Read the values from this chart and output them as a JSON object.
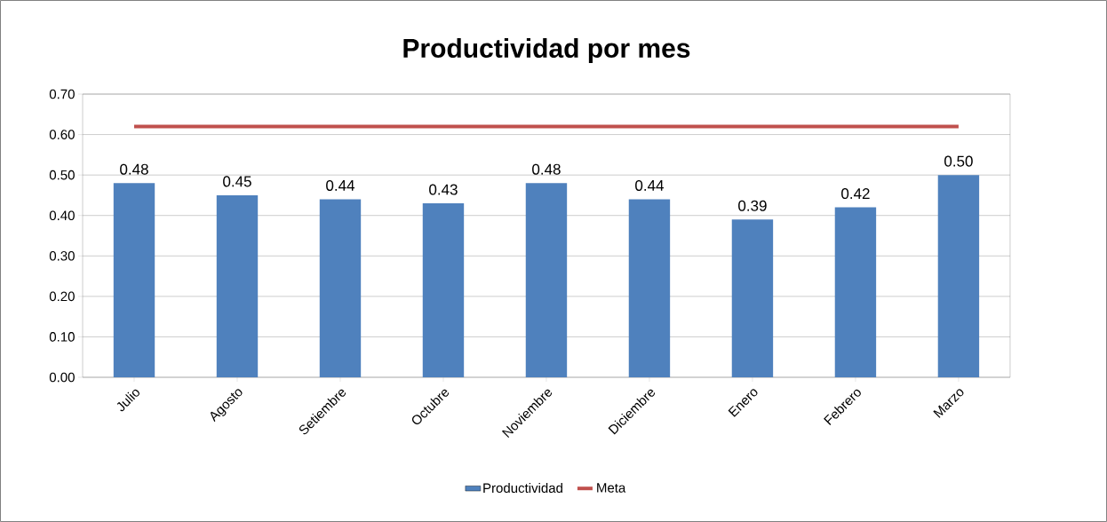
{
  "chart_data": {
    "type": "bar",
    "title": "Productividad por mes",
    "categories": [
      "Julio",
      "Agosto",
      "Setiembre",
      "Octubre",
      "Noviembre",
      "Diciembre",
      "Enero",
      "Febrero",
      "Marzo"
    ],
    "series": [
      {
        "name": "Productividad",
        "color": "#4f81bd",
        "values": [
          0.48,
          0.45,
          0.44,
          0.43,
          0.48,
          0.44,
          0.39,
          0.42,
          0.5
        ],
        "value_labels": [
          "0.48",
          "0.45",
          "0.44",
          "0.43",
          "0.48",
          "0.44",
          "0.39",
          "0.42",
          "0.50"
        ]
      },
      {
        "name": "Meta",
        "type": "line",
        "color": "#c0504d",
        "values": [
          0.62,
          0.62,
          0.62,
          0.62,
          0.62,
          0.62,
          0.62,
          0.62,
          0.62
        ]
      }
    ],
    "ylim": [
      0,
      0.7
    ],
    "yticks": [
      {
        "value": 0,
        "label": "0.00"
      },
      {
        "value": 0.1,
        "label": "0.10"
      },
      {
        "value": 0.2,
        "label": "0.20"
      },
      {
        "value": 0.3,
        "label": "0.30"
      },
      {
        "value": 0.4,
        "label": "0.40"
      },
      {
        "value": 0.5,
        "label": "0.50"
      },
      {
        "value": 0.6,
        "label": "0.60"
      },
      {
        "value": 0.7,
        "label": "0.70"
      }
    ],
    "grid": "y",
    "legend": "bottom"
  }
}
